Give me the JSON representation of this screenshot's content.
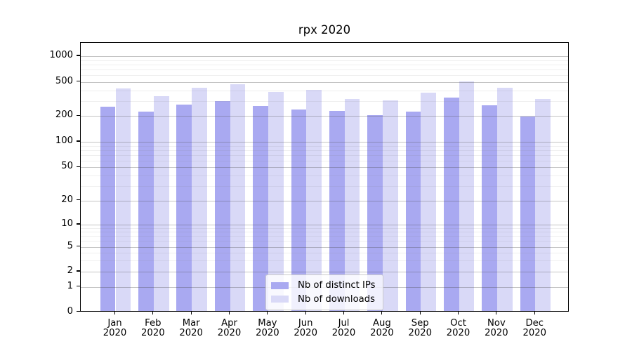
{
  "chart_data": {
    "type": "bar",
    "title": "rpx 2020",
    "categories": [
      "Jan 2020",
      "Feb 2020",
      "Mar 2020",
      "Apr 2020",
      "May 2020",
      "Jun 2020",
      "Jul 2020",
      "Aug 2020",
      "Sep 2020",
      "Oct 2020",
      "Nov 2020",
      "Dec 2020"
    ],
    "series": [
      {
        "name": "Nb of distinct IPs",
        "color": "#a9a9f1",
        "values": [
          258,
          226,
          272,
          297,
          263,
          237,
          231,
          204,
          227,
          330,
          265,
          196
        ]
      },
      {
        "name": "Nb of downloads",
        "color": "#d9d9f7",
        "values": [
          420,
          338,
          430,
          470,
          380,
          407,
          315,
          306,
          372,
          510,
          425,
          317
        ]
      }
    ],
    "xlabel": "",
    "ylabel": "",
    "yscale": "symlog",
    "y_ticks": [
      0,
      1,
      2,
      5,
      10,
      20,
      50,
      100,
      200,
      500,
      1000
    ],
    "ylim": [
      0,
      1400
    ],
    "grid": "on",
    "legend_position": "lower center"
  }
}
